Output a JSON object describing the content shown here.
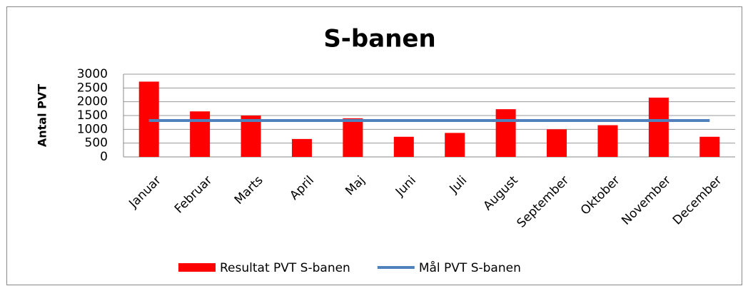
{
  "chart_data": {
    "type": "bar",
    "title": "S-banen",
    "y_label": "Antal PVT",
    "categories": [
      "Januar",
      "Februar",
      "Marts",
      "April",
      "Maj",
      "Juni",
      "Juli",
      "August",
      "September",
      "Oktober",
      "November",
      "December"
    ],
    "series": [
      {
        "name": "Resultat PVT S-banen",
        "type": "bar",
        "color": "#ff0000",
        "values": [
          2730,
          1650,
          1500,
          650,
          1400,
          730,
          870,
          1730,
          1000,
          1150,
          2150,
          730
        ]
      },
      {
        "name": "Mål PVT S-banen",
        "type": "line",
        "color": "#4f81bd",
        "values": [
          1320,
          1320,
          1320,
          1320,
          1320,
          1320,
          1320,
          1320,
          1320,
          1320,
          1320,
          1320
        ]
      }
    ],
    "ylim": [
      0,
      3000
    ],
    "yticks": [
      0,
      500,
      1000,
      1500,
      2000,
      2500,
      3000
    ],
    "grid": true,
    "legend": "bottom"
  }
}
